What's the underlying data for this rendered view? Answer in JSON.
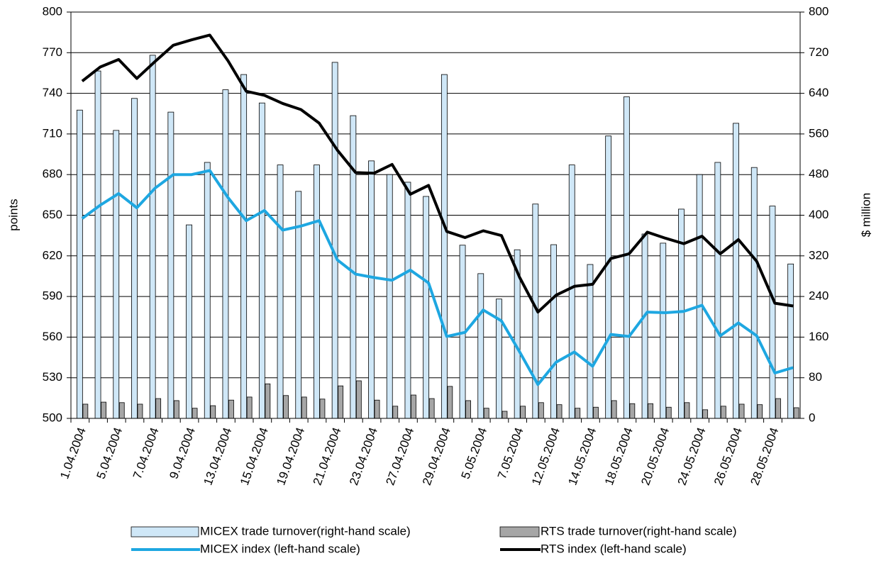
{
  "chart_data": {
    "type": "bar",
    "y_label": "points",
    "y2_label": "$ million",
    "categories": [
      "1.04.2004",
      null,
      "5.04.2004",
      null,
      "7.04.2004",
      null,
      "9.04.2004",
      null,
      "13.04.2004",
      null,
      "15.04.2004",
      null,
      "19.04.2004",
      null,
      "21.04.2004",
      null,
      "23.04.2004",
      null,
      "27.04.2004",
      null,
      "29.04.2004",
      null,
      "5.05.2004",
      null,
      "7.05.2004",
      null,
      "12.05.2004",
      null,
      "14.05.2004",
      null,
      "18.05.2004",
      null,
      "20.05.2004",
      null,
      "24.05.2004",
      null,
      "26.05.2004",
      null,
      "28.05.2004",
      null
    ],
    "ylim": [
      500,
      800
    ],
    "yticks": [
      500,
      530,
      560,
      590,
      620,
      650,
      680,
      710,
      740,
      770,
      800
    ],
    "y2lim": [
      0,
      800
    ],
    "y2ticks": [
      0,
      80,
      160,
      240,
      320,
      400,
      480,
      560,
      640,
      720,
      800
    ],
    "grid": true,
    "legend": "bottom",
    "series": [
      {
        "name": "MICEX trade turnover(right-hand scale)",
        "type": "bar",
        "axis": "y2",
        "color": "#cfe7f7",
        "values": [
          607,
          684,
          567,
          630,
          715,
          603,
          381,
          504,
          647,
          677,
          621,
          499,
          447,
          499,
          701,
          596,
          507,
          480,
          465,
          437,
          677,
          341,
          285,
          235,
          332,
          422,
          342,
          499,
          303,
          556,
          633,
          363,
          345,
          412,
          480,
          504,
          581,
          494,
          418,
          304
        ]
      },
      {
        "name": "RTS trade turnover(right-hand scale)",
        "type": "bar",
        "axis": "y2",
        "color": "#a6a6a6",
        "values": [
          28,
          32,
          31,
          28,
          39,
          35,
          20,
          25,
          36,
          42,
          68,
          45,
          42,
          38,
          64,
          74,
          36,
          24,
          46,
          39,
          63,
          35,
          20,
          14,
          24,
          31,
          27,
          20,
          22,
          35,
          29,
          29,
          22,
          31,
          17,
          24,
          28,
          27,
          39,
          21
        ]
      },
      {
        "name": "MICEX index (left-hand scale)",
        "type": "line",
        "color": "#1ea7e1",
        "values": [
          647.6,
          657.5,
          666,
          655.5,
          670,
          680,
          680,
          683,
          663,
          646,
          653.5,
          639,
          642,
          646,
          617,
          606.5,
          604,
          602,
          609.5,
          600,
          560.5,
          563.5,
          580,
          572,
          549,
          525,
          541.5,
          549,
          538.5,
          562,
          560.5,
          578.5,
          578,
          579,
          583.5,
          561,
          570.5,
          561,
          533.5,
          537.5
        ]
      },
      {
        "name": "RTS index (left-hand scale)",
        "type": "line",
        "color": "#000000",
        "values": [
          749,
          759.5,
          765,
          751,
          763.5,
          775.5,
          779.5,
          783,
          764,
          741.5,
          738.5,
          732.5,
          728,
          718,
          698,
          681.5,
          681,
          687.5,
          665.5,
          672,
          638,
          633.5,
          638.5,
          635,
          604,
          578.5,
          591,
          597.5,
          599,
          618,
          621.5,
          637.5,
          633,
          629,
          634.5,
          621.5,
          632,
          616,
          585,
          583
        ]
      }
    ]
  }
}
